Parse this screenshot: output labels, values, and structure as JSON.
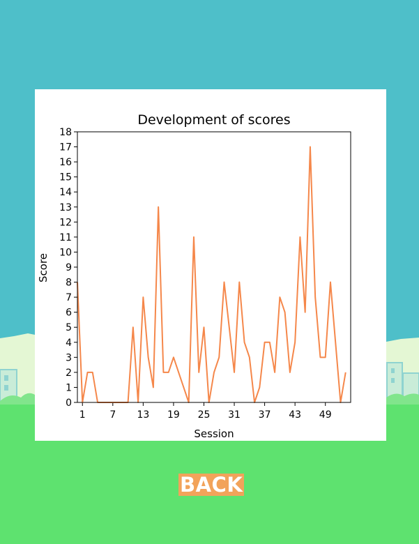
{
  "colors": {
    "sky": "#4ebfc9",
    "ground": "#5ee26f",
    "line": "#f5874a",
    "button_bg": "#f2a35a",
    "button_text": "#ffffff"
  },
  "icons": [
    "city-skyline-background",
    "bushes-background"
  ],
  "back_button": {
    "label": "BACK"
  },
  "chart_data": {
    "type": "line",
    "title": "Development of scores",
    "xlabel": "Session",
    "ylabel": "Score",
    "xlim": [
      0,
      54
    ],
    "ylim": [
      0,
      18
    ],
    "xticks": [
      1,
      7,
      13,
      19,
      25,
      31,
      37,
      43,
      49
    ],
    "yticks": [
      0,
      1,
      2,
      3,
      4,
      5,
      6,
      7,
      8,
      9,
      10,
      11,
      12,
      13,
      14,
      15,
      16,
      17,
      18
    ],
    "grid": false,
    "series": [
      {
        "x": [
          0,
          1,
          2,
          3,
          4,
          5,
          6,
          7,
          8,
          9,
          10,
          11,
          12,
          13,
          14,
          15,
          16,
          17,
          18,
          19,
          20,
          21,
          22,
          23,
          24,
          25,
          26,
          27,
          28,
          29,
          30,
          31,
          32,
          33,
          34,
          35,
          36,
          37,
          38,
          39,
          40,
          41,
          42,
          43,
          44,
          45,
          46,
          47,
          48,
          49,
          50,
          51,
          52,
          53
        ],
        "values": [
          8,
          0,
          2,
          2,
          0,
          0,
          0,
          0,
          0,
          0,
          0,
          5,
          0,
          7,
          3,
          1,
          13,
          2,
          2,
          3,
          2,
          1,
          0,
          11,
          2,
          5,
          0,
          2,
          3,
          8,
          5,
          2,
          8,
          4,
          3,
          0,
          1,
          4,
          4,
          2,
          7,
          6,
          2,
          4,
          11,
          6,
          17,
          7,
          3,
          3,
          8,
          4,
          0,
          2
        ]
      }
    ]
  }
}
